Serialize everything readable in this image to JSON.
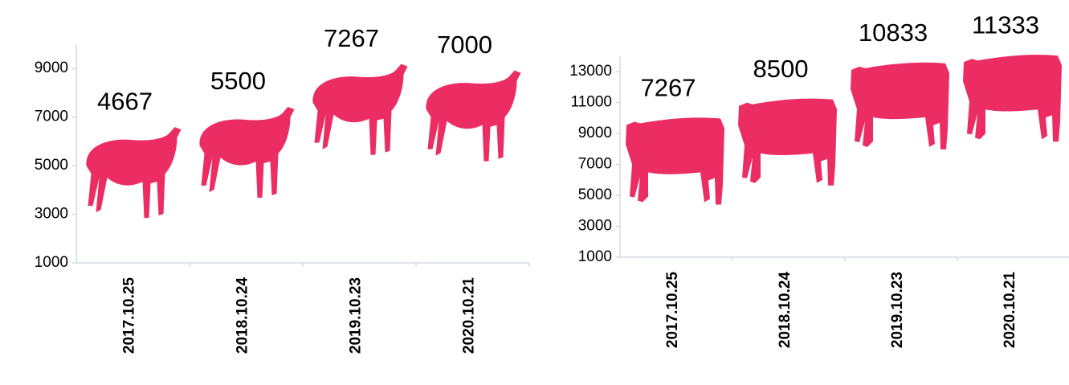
{
  "chart_data": [
    {
      "type": "pictorial_bar",
      "categories": [
        "2017.10.25",
        "2018.10.24",
        "2019.10.23",
        "2020.10.21"
      ],
      "values": [
        4667,
        5500,
        7267,
        7000
      ],
      "color": "#ec2d64",
      "ylim": [
        1000,
        10000
      ],
      "yticks": [
        1000,
        3000,
        5000,
        7000,
        9000
      ],
      "grid": false
    },
    {
      "type": "pictorial_bar",
      "categories": [
        "2017.10.25",
        "2018.10.24",
        "2019.10.23",
        "2020.10.21"
      ],
      "values": [
        7267,
        8500,
        10833,
        11333
      ],
      "color": "#ec2d64",
      "ylim": [
        1000,
        14000
      ],
      "yticks": [
        1000,
        3000,
        5000,
        7000,
        9000,
        11000,
        13000
      ],
      "grid": false
    }
  ]
}
